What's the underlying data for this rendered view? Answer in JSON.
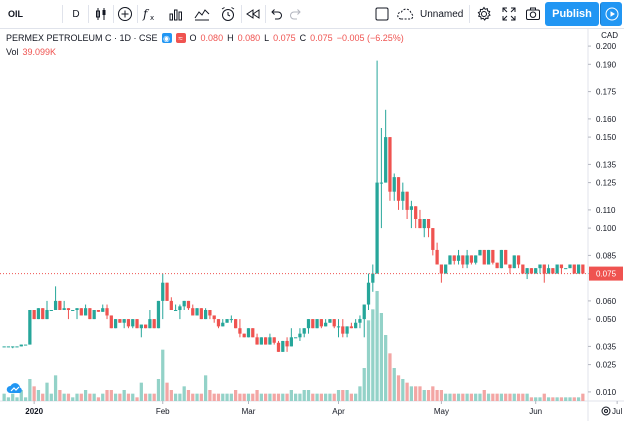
{
  "toolbar": {
    "symbol": "OIL",
    "interval": "D",
    "layout_name": "Unnamed",
    "publish_label": "Publish",
    "icons": [
      "candles-icon",
      "add-symbol-icon",
      "indicators-icon",
      "bar-chart-icon",
      "templates-icon",
      "alert-icon",
      "replay-icon",
      "undo-icon",
      "redo-icon",
      "cloud-icon",
      "settings-icon",
      "fullscreen-icon",
      "camera-icon",
      "play-icon"
    ]
  },
  "legend": {
    "title": "PERMEX PETROLEUM C · 1D · CSE",
    "o_label": "O",
    "o_val": "0.080",
    "h_label": "H",
    "h_val": "0.080",
    "l_label": "L",
    "l_val": "0.075",
    "c_label": "C",
    "c_val": "0.075",
    "change": "−0.005 (−6.25%)",
    "vol_label": "Vol",
    "vol_value": "39.099K"
  },
  "currency": "CAD",
  "colors": {
    "up": "#26a69a",
    "down": "#ef5350",
    "up_vol": "#93d2c8",
    "down_vol": "#f3a6a4",
    "accent": "#2196f3",
    "last_price_bg": "#ef5350"
  },
  "chart_data": {
    "type": "candlestick",
    "y_range": [
      0.005,
      0.205
    ],
    "y_ticks": [
      "0.200",
      "0.190",
      "0.175",
      "0.160",
      "0.150",
      "0.135",
      "0.125",
      "0.110",
      "0.100",
      "0.085",
      "0.075",
      "0.060",
      "0.050",
      "0.035",
      "0.025",
      "0.010"
    ],
    "y_tick_values": [
      0.2,
      0.19,
      0.175,
      0.16,
      0.15,
      0.135,
      0.125,
      0.11,
      0.1,
      0.085,
      0.075,
      0.06,
      0.05,
      0.035,
      0.025,
      0.01
    ],
    "x_labels": [
      "2020",
      "Feb",
      "Mar",
      "Apr",
      "May",
      "Jun",
      "Jul"
    ],
    "x_label_index": [
      7,
      37,
      57,
      78,
      102,
      124,
      143
    ],
    "last_price": "0.075",
    "last_price_value": 0.075,
    "candles": [
      [
        0.035,
        0.035,
        0.035,
        0.035,
        2
      ],
      [
        0.035,
        0.035,
        0.035,
        0.035,
        1
      ],
      [
        0.035,
        0.035,
        0.034,
        0.035,
        2
      ],
      [
        0.035,
        0.035,
        0.035,
        0.035,
        1
      ],
      [
        0.035,
        0.036,
        0.035,
        0.036,
        3
      ],
      [
        0.036,
        0.036,
        0.036,
        0.036,
        1
      ],
      [
        0.036,
        0.055,
        0.036,
        0.055,
        6
      ],
      [
        0.055,
        0.055,
        0.05,
        0.05,
        4
      ],
      [
        0.05,
        0.056,
        0.05,
        0.056,
        3
      ],
      [
        0.056,
        0.056,
        0.05,
        0.05,
        2
      ],
      [
        0.05,
        0.06,
        0.05,
        0.055,
        5
      ],
      [
        0.055,
        0.055,
        0.055,
        0.055,
        2
      ],
      [
        0.055,
        0.068,
        0.055,
        0.06,
        7
      ],
      [
        0.06,
        0.06,
        0.055,
        0.055,
        3
      ],
      [
        0.055,
        0.06,
        0.055,
        0.056,
        2
      ],
      [
        0.056,
        0.056,
        0.05,
        0.055,
        2
      ],
      [
        0.055,
        0.055,
        0.055,
        0.055,
        1
      ],
      [
        0.055,
        0.056,
        0.05,
        0.056,
        2
      ],
      [
        0.056,
        0.056,
        0.052,
        0.052,
        2
      ],
      [
        0.052,
        0.058,
        0.052,
        0.056,
        3
      ],
      [
        0.056,
        0.056,
        0.05,
        0.05,
        2
      ],
      [
        0.05,
        0.055,
        0.05,
        0.055,
        2
      ],
      [
        0.055,
        0.055,
        0.054,
        0.054,
        1
      ],
      [
        0.054,
        0.058,
        0.054,
        0.056,
        2
      ],
      [
        0.056,
        0.058,
        0.05,
        0.052,
        3
      ],
      [
        0.052,
        0.052,
        0.045,
        0.045,
        3
      ],
      [
        0.045,
        0.05,
        0.045,
        0.05,
        2
      ],
      [
        0.05,
        0.05,
        0.048,
        0.048,
        2
      ],
      [
        0.048,
        0.05,
        0.045,
        0.05,
        3
      ],
      [
        0.05,
        0.05,
        0.045,
        0.046,
        2
      ],
      [
        0.046,
        0.05,
        0.045,
        0.05,
        2
      ],
      [
        0.05,
        0.05,
        0.045,
        0.045,
        1
      ],
      [
        0.045,
        0.047,
        0.04,
        0.047,
        5
      ],
      [
        0.047,
        0.047,
        0.045,
        0.045,
        2
      ],
      [
        0.045,
        0.055,
        0.045,
        0.05,
        2
      ],
      [
        0.05,
        0.05,
        0.045,
        0.045,
        2
      ],
      [
        0.045,
        0.06,
        0.045,
        0.06,
        6
      ],
      [
        0.06,
        0.075,
        0.05,
        0.07,
        14
      ],
      [
        0.07,
        0.07,
        0.06,
        0.06,
        5
      ],
      [
        0.06,
        0.062,
        0.055,
        0.055,
        3
      ],
      [
        0.055,
        0.058,
        0.055,
        0.055,
        2
      ],
      [
        0.055,
        0.058,
        0.05,
        0.057,
        2
      ],
      [
        0.057,
        0.06,
        0.055,
        0.06,
        4
      ],
      [
        0.06,
        0.06,
        0.055,
        0.056,
        3
      ],
      [
        0.056,
        0.058,
        0.052,
        0.052,
        2
      ],
      [
        0.052,
        0.056,
        0.052,
        0.056,
        2
      ],
      [
        0.056,
        0.056,
        0.05,
        0.05,
        2
      ],
      [
        0.05,
        0.056,
        0.05,
        0.055,
        7
      ],
      [
        0.055,
        0.055,
        0.05,
        0.052,
        3
      ],
      [
        0.052,
        0.052,
        0.048,
        0.05,
        2
      ],
      [
        0.05,
        0.05,
        0.045,
        0.046,
        2
      ],
      [
        0.046,
        0.05,
        0.046,
        0.048,
        2
      ],
      [
        0.048,
        0.05,
        0.048,
        0.05,
        2
      ],
      [
        0.05,
        0.052,
        0.048,
        0.05,
        2
      ],
      [
        0.05,
        0.05,
        0.045,
        0.045,
        3
      ],
      [
        0.045,
        0.05,
        0.04,
        0.042,
        2
      ],
      [
        0.042,
        0.042,
        0.04,
        0.04,
        2
      ],
      [
        0.04,
        0.045,
        0.04,
        0.045,
        2
      ],
      [
        0.045,
        0.045,
        0.04,
        0.04,
        2
      ],
      [
        0.04,
        0.042,
        0.036,
        0.036,
        3
      ],
      [
        0.036,
        0.04,
        0.036,
        0.04,
        2
      ],
      [
        0.04,
        0.04,
        0.036,
        0.036,
        2
      ],
      [
        0.036,
        0.042,
        0.036,
        0.04,
        2
      ],
      [
        0.04,
        0.04,
        0.036,
        0.037,
        2
      ],
      [
        0.037,
        0.038,
        0.032,
        0.032,
        2
      ],
      [
        0.032,
        0.038,
        0.032,
        0.038,
        2
      ],
      [
        0.038,
        0.04,
        0.032,
        0.035,
        2
      ],
      [
        0.035,
        0.045,
        0.035,
        0.04,
        3
      ],
      [
        0.04,
        0.04,
        0.04,
        0.04,
        2
      ],
      [
        0.04,
        0.045,
        0.038,
        0.042,
        2
      ],
      [
        0.042,
        0.045,
        0.04,
        0.045,
        3
      ],
      [
        0.045,
        0.05,
        0.042,
        0.05,
        3
      ],
      [
        0.05,
        0.05,
        0.045,
        0.045,
        2
      ],
      [
        0.045,
        0.05,
        0.045,
        0.05,
        2
      ],
      [
        0.05,
        0.05,
        0.045,
        0.046,
        2
      ],
      [
        0.046,
        0.05,
        0.046,
        0.048,
        2
      ],
      [
        0.048,
        0.05,
        0.048,
        0.05,
        2
      ],
      [
        0.05,
        0.05,
        0.045,
        0.046,
        2
      ],
      [
        0.046,
        0.05,
        0.04,
        0.046,
        3
      ],
      [
        0.046,
        0.05,
        0.04,
        0.042,
        3
      ],
      [
        0.042,
        0.046,
        0.04,
        0.046,
        3
      ],
      [
        0.046,
        0.048,
        0.045,
        0.045,
        2
      ],
      [
        0.045,
        0.05,
        0.045,
        0.048,
        2
      ],
      [
        0.048,
        0.052,
        0.045,
        0.05,
        4
      ],
      [
        0.05,
        0.058,
        0.04,
        0.058,
        9
      ],
      [
        0.058,
        0.075,
        0.055,
        0.07,
        22
      ],
      [
        0.07,
        0.08,
        0.065,
        0.075,
        25
      ],
      [
        0.075,
        0.192,
        0.075,
        0.125,
        30
      ],
      [
        0.125,
        0.155,
        0.1,
        0.125,
        24
      ],
      [
        0.125,
        0.165,
        0.125,
        0.15,
        18
      ],
      [
        0.15,
        0.15,
        0.115,
        0.12,
        13
      ],
      [
        0.12,
        0.13,
        0.115,
        0.128,
        9
      ],
      [
        0.128,
        0.128,
        0.11,
        0.115,
        7
      ],
      [
        0.115,
        0.125,
        0.11,
        0.12,
        6
      ],
      [
        0.12,
        0.12,
        0.105,
        0.11,
        5
      ],
      [
        0.11,
        0.115,
        0.1,
        0.112,
        4
      ],
      [
        0.112,
        0.112,
        0.1,
        0.105,
        4
      ],
      [
        0.105,
        0.11,
        0.1,
        0.1,
        4
      ],
      [
        0.1,
        0.105,
        0.095,
        0.105,
        3
      ],
      [
        0.105,
        0.105,
        0.095,
        0.1,
        3
      ],
      [
        0.1,
        0.1,
        0.085,
        0.088,
        4
      ],
      [
        0.088,
        0.092,
        0.08,
        0.08,
        3
      ],
      [
        0.08,
        0.08,
        0.07,
        0.075,
        3
      ],
      [
        0.075,
        0.08,
        0.075,
        0.08,
        2
      ],
      [
        0.08,
        0.085,
        0.08,
        0.085,
        2
      ],
      [
        0.085,
        0.085,
        0.08,
        0.082,
        2
      ],
      [
        0.082,
        0.088,
        0.08,
        0.085,
        2
      ],
      [
        0.085,
        0.085,
        0.078,
        0.08,
        2
      ],
      [
        0.08,
        0.088,
        0.078,
        0.085,
        2
      ],
      [
        0.085,
        0.085,
        0.08,
        0.081,
        2
      ],
      [
        0.081,
        0.085,
        0.08,
        0.085,
        2
      ],
      [
        0.085,
        0.088,
        0.085,
        0.088,
        2
      ],
      [
        0.088,
        0.088,
        0.08,
        0.08,
        3
      ],
      [
        0.08,
        0.088,
        0.08,
        0.088,
        2
      ],
      [
        0.088,
        0.088,
        0.08,
        0.081,
        2
      ],
      [
        0.081,
        0.081,
        0.078,
        0.078,
        2
      ],
      [
        0.078,
        0.088,
        0.078,
        0.088,
        2
      ],
      [
        0.088,
        0.088,
        0.08,
        0.08,
        2
      ],
      [
        0.08,
        0.08,
        0.075,
        0.078,
        2
      ],
      [
        0.078,
        0.085,
        0.078,
        0.085,
        2
      ],
      [
        0.085,
        0.085,
        0.078,
        0.08,
        2
      ],
      [
        0.08,
        0.08,
        0.075,
        0.075,
        2
      ],
      [
        0.075,
        0.078,
        0.072,
        0.078,
        2
      ],
      [
        0.078,
        0.078,
        0.075,
        0.075,
        1
      ],
      [
        0.075,
        0.078,
        0.075,
        0.078,
        1
      ],
      [
        0.078,
        0.08,
        0.075,
        0.08,
        1
      ],
      [
        0.08,
        0.08,
        0.07,
        0.075,
        2
      ],
      [
        0.075,
        0.08,
        0.075,
        0.078,
        1
      ],
      [
        0.078,
        0.078,
        0.075,
        0.075,
        1
      ],
      [
        0.075,
        0.08,
        0.075,
        0.08,
        1
      ],
      [
        0.08,
        0.08,
        0.075,
        0.078,
        1
      ],
      [
        0.078,
        0.078,
        0.078,
        0.078,
        1
      ],
      [
        0.078,
        0.08,
        0.078,
        0.08,
        1
      ],
      [
        0.08,
        0.08,
        0.075,
        0.075,
        1
      ],
      [
        0.075,
        0.08,
        0.075,
        0.08,
        1
      ],
      [
        0.08,
        0.08,
        0.075,
        0.075,
        2
      ]
    ]
  }
}
